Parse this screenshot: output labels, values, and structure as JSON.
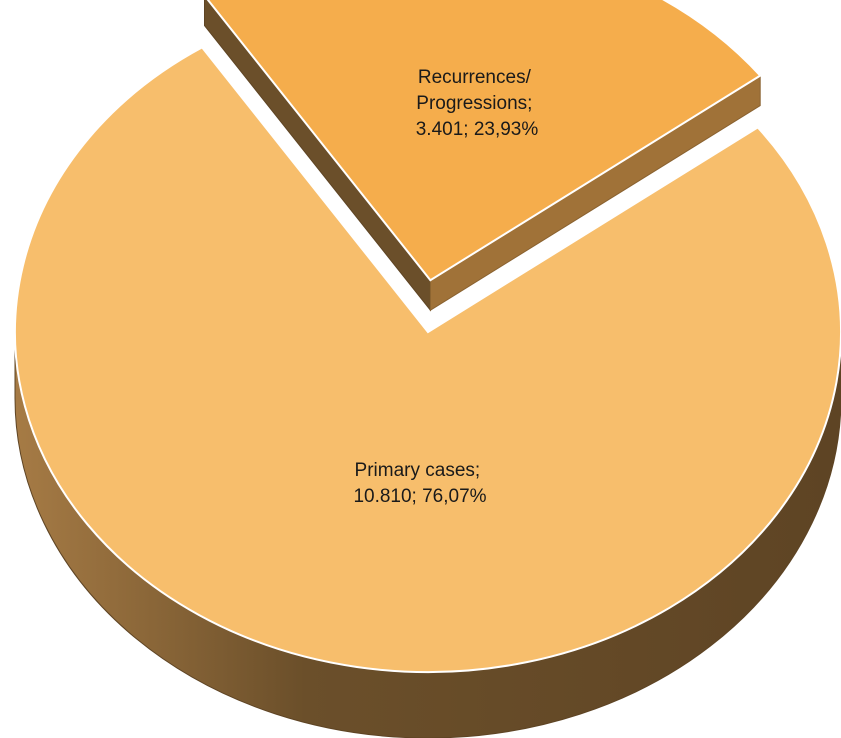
{
  "chart_data": {
    "type": "pie",
    "title": "",
    "slices": [
      {
        "label_line1": "Recurrences/",
        "label_line2": "Progressions;",
        "label_line3": "3.401; 23,93%",
        "category": "Recurrences/ Progressions",
        "value": 3401,
        "percent": 23.93,
        "color": "#f5ad4c",
        "exploded": true
      },
      {
        "label_line1": "Primary cases;",
        "label_line2": "10.810; 76,07%",
        "category": "Primary cases",
        "value": 10810,
        "percent": 76.07,
        "color": "#f7be6c",
        "exploded": false
      }
    ],
    "colors": {
      "slice_border": "#ffffff",
      "side_dark": "#5e4424",
      "side_light": "#a67b45"
    },
    "view": "3d-tilted"
  }
}
